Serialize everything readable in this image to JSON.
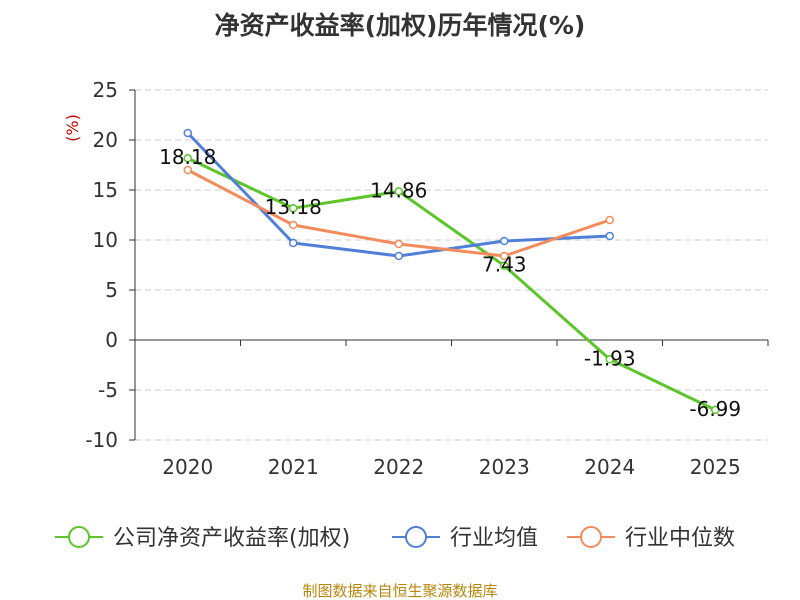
{
  "chart_data": {
    "type": "line",
    "title": "净资产收益率(加权)历年情况(%)",
    "ylabel": "(%)",
    "xlabel": "",
    "categories": [
      "2020",
      "2021",
      "2022",
      "2023",
      "2024",
      "2025"
    ],
    "ylim": [
      -10,
      25
    ],
    "yticks": [
      25,
      20,
      15,
      10,
      5,
      0,
      -5,
      -10
    ],
    "grid": true,
    "series": [
      {
        "name": "公司净资产收益率(加权)",
        "color": "#5cc52a",
        "values": [
          18.18,
          13.18,
          14.86,
          7.43,
          -1.93,
          -6.99
        ],
        "labels": [
          "18.18",
          "13.18",
          "14.86",
          "7.43",
          "-1.93",
          "-6.99"
        ]
      },
      {
        "name": "行业均值",
        "color": "#4f7fd9",
        "values": [
          20.7,
          9.7,
          8.4,
          9.9,
          10.4,
          null
        ]
      },
      {
        "name": "行业中位数",
        "color": "#f28c5c",
        "values": [
          17.0,
          11.5,
          9.6,
          8.4,
          12.0,
          null
        ]
      }
    ],
    "legend_position": "bottom",
    "source": "制图数据来自恒生聚源数据库"
  }
}
